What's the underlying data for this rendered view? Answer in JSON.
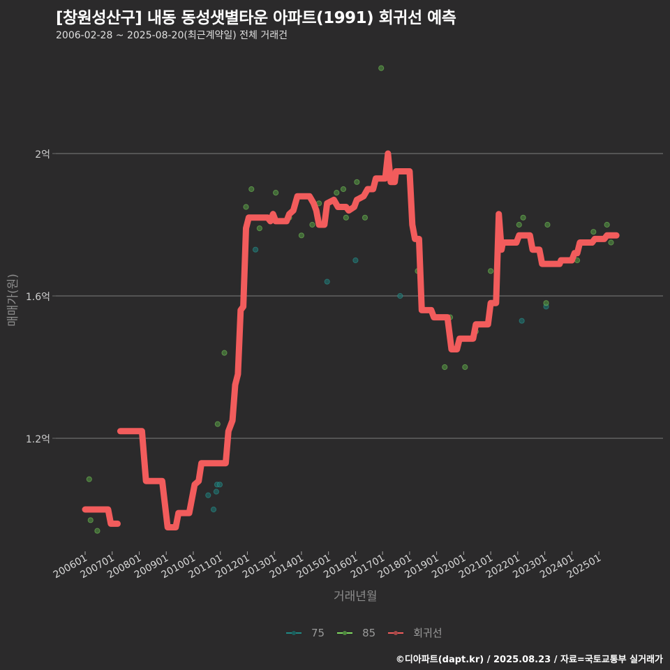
{
  "header": {
    "title": "[창원성산구] 내동 동성샛별타운 아파트(1991) 회귀선 예측",
    "subtitle": "2006-02-28 ~ 2025-08-20(최근계약일) 전체 거래건"
  },
  "axes": {
    "y_label": "매매가(원)",
    "x_label": "거래년월",
    "y_ticks": [
      {
        "label": "2억",
        "value": 2.0
      },
      {
        "label": "1.6억",
        "value": 1.6
      },
      {
        "label": "1.2억",
        "value": 1.2
      }
    ],
    "x_ticks": [
      "200601",
      "200701",
      "200801",
      "200901",
      "201001",
      "201101",
      "201201",
      "201301",
      "201401",
      "201501",
      "201601",
      "201701",
      "201801",
      "201901",
      "202001",
      "202101",
      "202201",
      "202301",
      "202401",
      "202501"
    ]
  },
  "legend": {
    "items": [
      {
        "label": "75",
        "color": "#1f8a86"
      },
      {
        "label": "85",
        "color": "#7fd85f"
      },
      {
        "label": "회귀선",
        "color": "#f25c5c"
      }
    ]
  },
  "caption": "©디아파트(dapt.kr) / 2025.08.23 / 자료=국토교통부 실거래가",
  "colors": {
    "background": "#2b2a2b",
    "grid": "#6e6e6e",
    "regression": "#f25c5c",
    "series_75": "#1f8a86",
    "series_85": "#6fbf5a"
  },
  "chart_data": {
    "type": "scatter",
    "title": "[창원성산구] 내동 동성샛별타운 아파트(1991) 회귀선 예측",
    "subtitle": "2006-02-28 ~ 2025-08-20(최근계약일) 전체 거래건",
    "xlabel": "거래년월",
    "ylabel": "매매가(원)",
    "ylim_eok": [
      0.87,
      2.32
    ],
    "y_unit": "억",
    "grid": true,
    "legend_position": "bottom",
    "series": [
      {
        "name": "75",
        "type": "scatter",
        "points": [
          {
            "x": 2010.55,
            "y": 1.04
          },
          {
            "x": 2010.75,
            "y": 1.0
          },
          {
            "x": 2010.85,
            "y": 1.05
          },
          {
            "x": 2010.88,
            "y": 1.07
          },
          {
            "x": 2010.98,
            "y": 1.07
          },
          {
            "x": 2012.3,
            "y": 1.73
          },
          {
            "x": 2014.95,
            "y": 1.64
          },
          {
            "x": 2016.0,
            "y": 1.7
          },
          {
            "x": 2017.65,
            "y": 1.6
          },
          {
            "x": 2022.15,
            "y": 1.53
          },
          {
            "x": 2023.05,
            "y": 1.57
          }
        ]
      },
      {
        "name": "85",
        "type": "scatter",
        "points": [
          {
            "x": 2006.15,
            "y": 1.085
          },
          {
            "x": 2006.2,
            "y": 0.97
          },
          {
            "x": 2006.45,
            "y": 0.94
          },
          {
            "x": 2010.9,
            "y": 1.24
          },
          {
            "x": 2011.15,
            "y": 1.44
          },
          {
            "x": 2011.95,
            "y": 1.85
          },
          {
            "x": 2012.15,
            "y": 1.9
          },
          {
            "x": 2012.45,
            "y": 1.79
          },
          {
            "x": 2013.05,
            "y": 1.89
          },
          {
            "x": 2013.55,
            "y": 1.82
          },
          {
            "x": 2014.0,
            "y": 1.77
          },
          {
            "x": 2014.4,
            "y": 1.8
          },
          {
            "x": 2014.65,
            "y": 1.86
          },
          {
            "x": 2015.3,
            "y": 1.89
          },
          {
            "x": 2015.55,
            "y": 1.9
          },
          {
            "x": 2015.65,
            "y": 1.82
          },
          {
            "x": 2016.05,
            "y": 1.92
          },
          {
            "x": 2016.35,
            "y": 1.82
          },
          {
            "x": 2016.95,
            "y": 2.24
          },
          {
            "x": 2017.2,
            "y": 2.0
          },
          {
            "x": 2018.3,
            "y": 1.67
          },
          {
            "x": 2019.3,
            "y": 1.4
          },
          {
            "x": 2019.5,
            "y": 1.54
          },
          {
            "x": 2020.05,
            "y": 1.4
          },
          {
            "x": 2020.45,
            "y": 1.5
          },
          {
            "x": 2021.0,
            "y": 1.67
          },
          {
            "x": 2022.05,
            "y": 1.8
          },
          {
            "x": 2022.2,
            "y": 1.82
          },
          {
            "x": 2023.1,
            "y": 1.8
          },
          {
            "x": 2023.05,
            "y": 1.58
          },
          {
            "x": 2024.2,
            "y": 1.7
          },
          {
            "x": 2024.8,
            "y": 1.78
          },
          {
            "x": 2025.3,
            "y": 1.8
          },
          {
            "x": 2025.45,
            "y": 1.75
          }
        ]
      },
      {
        "name": "회귀선",
        "type": "line",
        "segments": [
          [
            {
              "x": 2006.0,
              "y": 1.0
            },
            {
              "x": 2006.85,
              "y": 1.0
            },
            {
              "x": 2006.95,
              "y": 0.96
            },
            {
              "x": 2007.2,
              "y": 0.96
            }
          ],
          [
            {
              "x": 2007.3,
              "y": 1.22
            },
            {
              "x": 2008.1,
              "y": 1.22
            },
            {
              "x": 2008.25,
              "y": 1.08
            },
            {
              "x": 2008.85,
              "y": 1.08
            },
            {
              "x": 2009.05,
              "y": 0.95
            },
            {
              "x": 2009.35,
              "y": 0.95
            },
            {
              "x": 2009.45,
              "y": 0.99
            },
            {
              "x": 2009.85,
              "y": 0.99
            },
            {
              "x": 2010.05,
              "y": 1.07
            },
            {
              "x": 2010.2,
              "y": 1.08
            },
            {
              "x": 2010.3,
              "y": 1.13
            },
            {
              "x": 2011.2,
              "y": 1.13
            },
            {
              "x": 2011.3,
              "y": 1.22
            },
            {
              "x": 2011.45,
              "y": 1.25
            },
            {
              "x": 2011.55,
              "y": 1.35
            },
            {
              "x": 2011.65,
              "y": 1.38
            },
            {
              "x": 2011.75,
              "y": 1.56
            },
            {
              "x": 2011.85,
              "y": 1.57
            },
            {
              "x": 2011.95,
              "y": 1.79
            },
            {
              "x": 2012.05,
              "y": 1.82
            },
            {
              "x": 2012.75,
              "y": 1.82
            },
            {
              "x": 2012.85,
              "y": 1.81
            },
            {
              "x": 2012.95,
              "y": 1.83
            },
            {
              "x": 2013.05,
              "y": 1.81
            },
            {
              "x": 2013.45,
              "y": 1.81
            },
            {
              "x": 2013.55,
              "y": 1.83
            },
            {
              "x": 2013.7,
              "y": 1.84
            },
            {
              "x": 2013.85,
              "y": 1.88
            },
            {
              "x": 2014.3,
              "y": 1.88
            },
            {
              "x": 2014.45,
              "y": 1.86
            },
            {
              "x": 2014.55,
              "y": 1.84
            },
            {
              "x": 2014.65,
              "y": 1.8
            },
            {
              "x": 2014.85,
              "y": 1.8
            },
            {
              "x": 2014.95,
              "y": 1.86
            },
            {
              "x": 2015.2,
              "y": 1.87
            },
            {
              "x": 2015.35,
              "y": 1.85
            },
            {
              "x": 2015.65,
              "y": 1.85
            },
            {
              "x": 2015.75,
              "y": 1.84
            },
            {
              "x": 2015.95,
              "y": 1.85
            },
            {
              "x": 2016.05,
              "y": 1.87
            },
            {
              "x": 2016.3,
              "y": 1.88
            },
            {
              "x": 2016.45,
              "y": 1.9
            },
            {
              "x": 2016.65,
              "y": 1.9
            },
            {
              "x": 2016.75,
              "y": 1.93
            },
            {
              "x": 2017.1,
              "y": 1.93
            },
            {
              "x": 2017.2,
              "y": 2.0
            },
            {
              "x": 2017.3,
              "y": 1.92
            },
            {
              "x": 2017.45,
              "y": 1.92
            },
            {
              "x": 2017.5,
              "y": 1.95
            },
            {
              "x": 2018.0,
              "y": 1.95
            },
            {
              "x": 2018.1,
              "y": 1.8
            },
            {
              "x": 2018.2,
              "y": 1.76
            },
            {
              "x": 2018.35,
              "y": 1.76
            },
            {
              "x": 2018.45,
              "y": 1.56
            },
            {
              "x": 2018.8,
              "y": 1.56
            },
            {
              "x": 2018.9,
              "y": 1.54
            },
            {
              "x": 2019.4,
              "y": 1.54
            },
            {
              "x": 2019.55,
              "y": 1.45
            },
            {
              "x": 2019.75,
              "y": 1.45
            },
            {
              "x": 2019.85,
              "y": 1.48
            },
            {
              "x": 2020.35,
              "y": 1.48
            },
            {
              "x": 2020.45,
              "y": 1.52
            },
            {
              "x": 2020.9,
              "y": 1.52
            },
            {
              "x": 2021.0,
              "y": 1.58
            },
            {
              "x": 2021.2,
              "y": 1.58
            },
            {
              "x": 2021.3,
              "y": 1.83
            },
            {
              "x": 2021.4,
              "y": 1.73
            },
            {
              "x": 2021.45,
              "y": 1.75
            },
            {
              "x": 2021.95,
              "y": 1.75
            },
            {
              "x": 2022.05,
              "y": 1.77
            },
            {
              "x": 2022.45,
              "y": 1.77
            },
            {
              "x": 2022.55,
              "y": 1.73
            },
            {
              "x": 2022.8,
              "y": 1.73
            },
            {
              "x": 2022.85,
              "y": 1.71
            },
            {
              "x": 2022.9,
              "y": 1.69
            },
            {
              "x": 2023.55,
              "y": 1.69
            },
            {
              "x": 2023.6,
              "y": 1.7
            },
            {
              "x": 2024.0,
              "y": 1.7
            },
            {
              "x": 2024.1,
              "y": 1.72
            },
            {
              "x": 2024.2,
              "y": 1.72
            },
            {
              "x": 2024.3,
              "y": 1.75
            },
            {
              "x": 2024.75,
              "y": 1.75
            },
            {
              "x": 2024.85,
              "y": 1.76
            },
            {
              "x": 2025.2,
              "y": 1.76
            },
            {
              "x": 2025.3,
              "y": 1.77
            },
            {
              "x": 2025.65,
              "y": 1.77
            }
          ]
        ]
      }
    ]
  }
}
